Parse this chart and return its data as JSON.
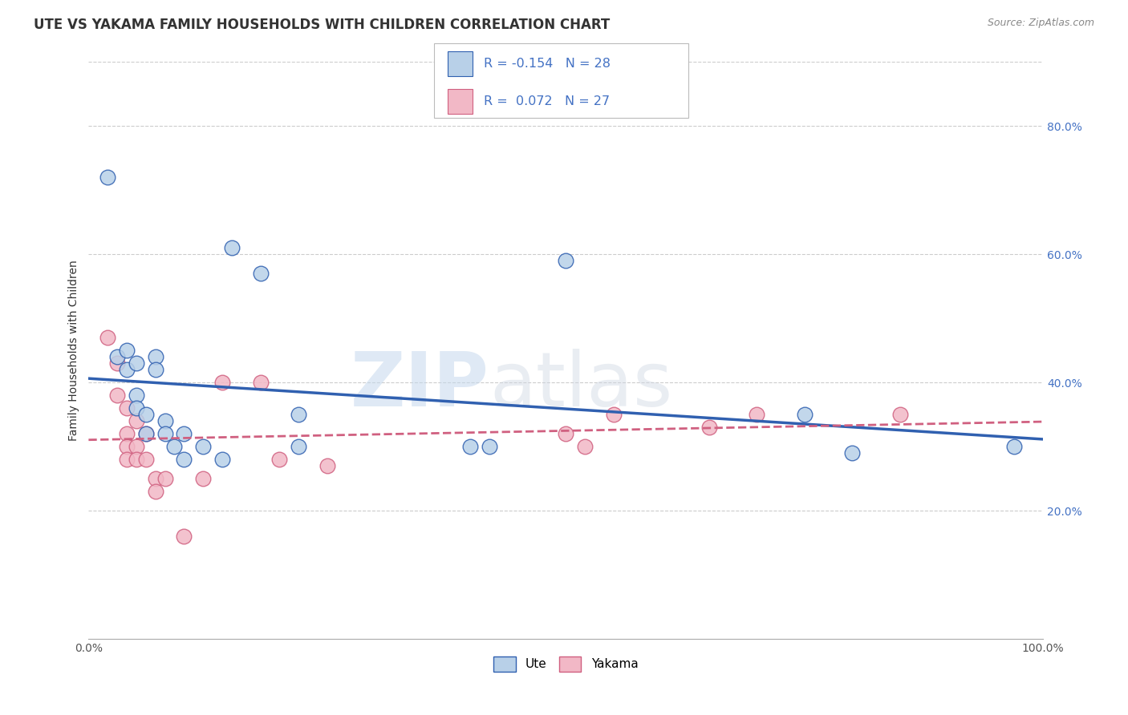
{
  "title": "UTE VS YAKAMA FAMILY HOUSEHOLDS WITH CHILDREN CORRELATION CHART",
  "source": "Source: ZipAtlas.com",
  "ylabel": "Family Households with Children",
  "watermark_zip": "ZIP",
  "watermark_atlas": "atlas",
  "xlim": [
    0.0,
    1.0
  ],
  "ylim": [
    0.0,
    0.9
  ],
  "x_ticks": [
    0.0,
    0.2,
    0.4,
    0.6,
    0.8,
    1.0
  ],
  "x_tick_labels": [
    "0.0%",
    "",
    "",
    "",
    "",
    "100.0%"
  ],
  "y_tick_labels": [
    "20.0%",
    "40.0%",
    "60.0%",
    "80.0%"
  ],
  "y_tick_values": [
    0.2,
    0.4,
    0.6,
    0.8
  ],
  "ute_color": "#b8d0e8",
  "yakama_color": "#f2b8c6",
  "ute_line_color": "#3060b0",
  "yakama_line_color": "#d06080",
  "legend_text_color": "#4472c4",
  "ute_R": -0.154,
  "ute_N": 28,
  "yakama_R": 0.072,
  "yakama_N": 27,
  "ute_scatter": [
    [
      0.02,
      0.72
    ],
    [
      0.03,
      0.44
    ],
    [
      0.04,
      0.45
    ],
    [
      0.04,
      0.42
    ],
    [
      0.05,
      0.43
    ],
    [
      0.05,
      0.38
    ],
    [
      0.05,
      0.36
    ],
    [
      0.06,
      0.35
    ],
    [
      0.06,
      0.32
    ],
    [
      0.07,
      0.44
    ],
    [
      0.07,
      0.42
    ],
    [
      0.08,
      0.34
    ],
    [
      0.08,
      0.32
    ],
    [
      0.09,
      0.3
    ],
    [
      0.1,
      0.32
    ],
    [
      0.1,
      0.28
    ],
    [
      0.12,
      0.3
    ],
    [
      0.14,
      0.28
    ],
    [
      0.15,
      0.61
    ],
    [
      0.18,
      0.57
    ],
    [
      0.22,
      0.35
    ],
    [
      0.22,
      0.3
    ],
    [
      0.4,
      0.3
    ],
    [
      0.42,
      0.3
    ],
    [
      0.5,
      0.59
    ],
    [
      0.75,
      0.35
    ],
    [
      0.8,
      0.29
    ],
    [
      0.97,
      0.3
    ]
  ],
  "yakama_scatter": [
    [
      0.02,
      0.47
    ],
    [
      0.03,
      0.43
    ],
    [
      0.03,
      0.38
    ],
    [
      0.04,
      0.36
    ],
    [
      0.04,
      0.32
    ],
    [
      0.04,
      0.3
    ],
    [
      0.04,
      0.28
    ],
    [
      0.05,
      0.34
    ],
    [
      0.05,
      0.3
    ],
    [
      0.05,
      0.28
    ],
    [
      0.06,
      0.32
    ],
    [
      0.06,
      0.28
    ],
    [
      0.07,
      0.25
    ],
    [
      0.07,
      0.23
    ],
    [
      0.08,
      0.25
    ],
    [
      0.1,
      0.16
    ],
    [
      0.12,
      0.25
    ],
    [
      0.14,
      0.4
    ],
    [
      0.18,
      0.4
    ],
    [
      0.2,
      0.28
    ],
    [
      0.25,
      0.27
    ],
    [
      0.5,
      0.32
    ],
    [
      0.52,
      0.3
    ],
    [
      0.55,
      0.35
    ],
    [
      0.65,
      0.33
    ],
    [
      0.7,
      0.35
    ],
    [
      0.85,
      0.35
    ]
  ],
  "background_color": "#ffffff",
  "grid_color": "#cccccc",
  "title_fontsize": 12,
  "axis_label_fontsize": 10,
  "tick_fontsize": 10
}
